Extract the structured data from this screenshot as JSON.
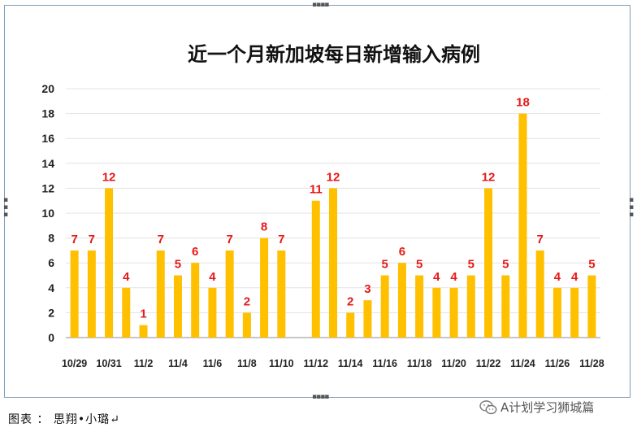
{
  "chart_data": {
    "type": "bar",
    "title": "近一个月新加坡每日新增输入病例",
    "xlabel": "",
    "ylabel": "",
    "ylim": [
      0,
      20
    ],
    "yticks": [
      0,
      2,
      4,
      6,
      8,
      10,
      12,
      14,
      16,
      18,
      20
    ],
    "grid": true,
    "bar_color": "#ffc000",
    "label_color": "#e81818",
    "categories": [
      "10/29",
      "10/30",
      "10/31",
      "11/1",
      "11/2",
      "11/3",
      "11/4",
      "11/5",
      "11/6",
      "11/7",
      "11/8",
      "11/9",
      "11/10",
      "11/11",
      "11/12",
      "11/13",
      "11/14",
      "11/15",
      "11/16",
      "11/17",
      "11/18",
      "11/19",
      "11/20",
      "11/21",
      "11/22",
      "11/23",
      "11/24",
      "11/25",
      "11/26",
      "11/27",
      "11/28"
    ],
    "x_tick_labels": [
      "10/29",
      "",
      "10/31",
      "",
      "11/2",
      "",
      "11/4",
      "",
      "11/6",
      "",
      "11/8",
      "",
      "11/10",
      "",
      "11/12",
      "",
      "11/14",
      "",
      "11/16",
      "",
      "11/18",
      "",
      "11/20",
      "",
      "11/22",
      "",
      "11/24",
      "",
      "11/26",
      "",
      "11/28"
    ],
    "values": [
      7,
      7,
      12,
      4,
      1,
      7,
      5,
      6,
      4,
      7,
      2,
      8,
      7,
      null,
      11,
      12,
      2,
      3,
      5,
      6,
      5,
      4,
      4,
      5,
      12,
      5,
      18,
      7,
      4,
      4,
      5
    ]
  },
  "caption": "图表 ： 思翔•小璐↵",
  "watermark": {
    "icon": "wechat-icon",
    "text": "A计划学习狮城篇"
  }
}
